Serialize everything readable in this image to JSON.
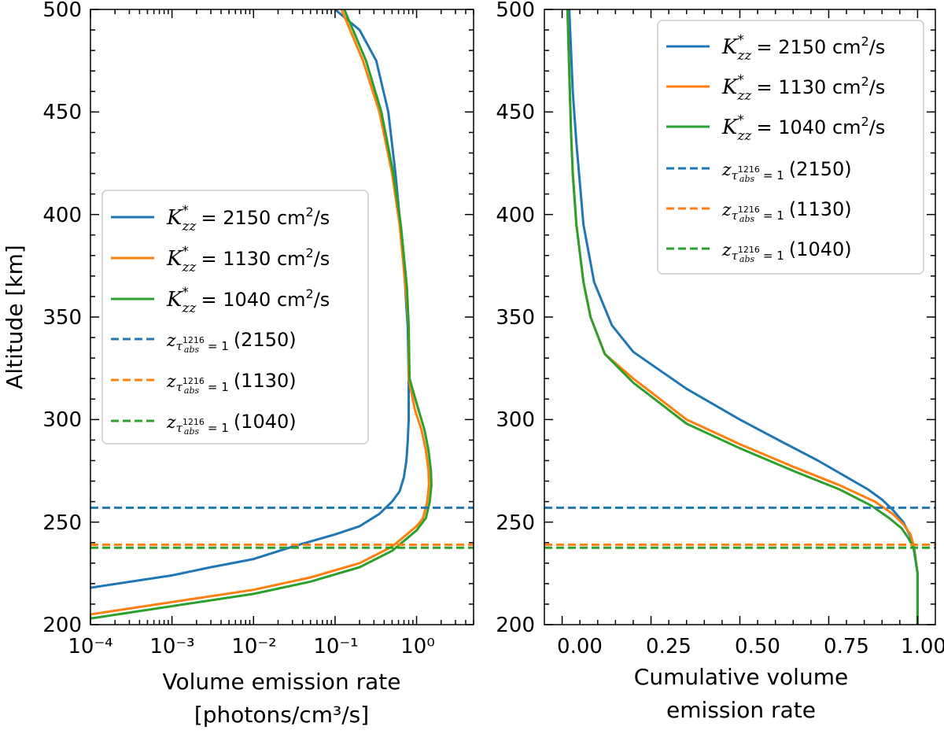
{
  "chart_data": [
    {
      "type": "line",
      "xscale": "log",
      "xlim": [
        0.0001,
        5
      ],
      "ylim": [
        200,
        500
      ],
      "ylabel": "Altitude [km]",
      "xlabel_line1": "Volume emission rate",
      "xlabel_line2": "[photons/cm³/s]",
      "xtick_labels": [
        "10⁻⁴",
        "10⁻³",
        "10⁻²",
        "10⁻¹",
        "10⁰"
      ],
      "ytick_labels": [
        "200",
        "250",
        "300",
        "350",
        "400",
        "450",
        "500"
      ],
      "legend_position": "center-left",
      "series": [
        {
          "name": "K*zz = 2150 cm²/s",
          "value": "2150",
          "color": "#1f77b4",
          "style": "solid",
          "x": [
            0.0001,
            0.001,
            0.003,
            0.01,
            0.03,
            0.1,
            0.2,
            0.35,
            0.5,
            0.62,
            0.7,
            0.75,
            0.78,
            0.8,
            0.8,
            0.78,
            0.75,
            0.72,
            0.65,
            0.55,
            0.45,
            0.32,
            0.2,
            0.1
          ],
          "y": [
            218,
            224,
            228,
            232,
            238,
            244,
            248,
            254,
            260,
            265,
            272,
            280,
            290,
            300,
            320,
            345,
            355,
            367,
            390,
            420,
            450,
            475,
            490,
            500
          ]
        },
        {
          "name": "K*zz = 1130 cm²/s",
          "value": "1130",
          "color": "#ff7f0e",
          "style": "solid",
          "x": [
            0.0001,
            0.001,
            0.01,
            0.05,
            0.2,
            0.5,
            1.0,
            1.2,
            1.35,
            1.42,
            1.4,
            1.3,
            1.15,
            0.95,
            0.8,
            0.8,
            0.75,
            0.62,
            0.5,
            0.35,
            0.22,
            0.12
          ],
          "y": [
            205,
            211,
            217,
            223,
            230,
            238,
            248,
            252,
            260,
            268,
            275,
            285,
            295,
            305,
            320,
            345,
            360,
            395,
            420,
            450,
            475,
            500
          ]
        },
        {
          "name": "K*zz = 1040 cm²/s",
          "value": "1040",
          "color": "#2ca02c",
          "style": "solid",
          "x": [
            0.0001,
            0.001,
            0.01,
            0.05,
            0.2,
            0.5,
            1.0,
            1.3,
            1.45,
            1.52,
            1.5,
            1.4,
            1.25,
            1.05,
            0.82,
            0.8,
            0.76,
            0.64,
            0.52,
            0.37,
            0.24,
            0.13
          ],
          "y": [
            203,
            209,
            215,
            221,
            228,
            236,
            246,
            252,
            260,
            268,
            275,
            285,
            295,
            305,
            320,
            346,
            365,
            395,
            420,
            450,
            475,
            500
          ]
        },
        {
          "name": "z(τ 1216 abs = 1) (2150)",
          "value": "(2150)",
          "color": "#1f77b4",
          "style": "dashed",
          "y": 257
        },
        {
          "name": "z(τ 1216 abs = 1) (1130)",
          "value": "(1130)",
          "color": "#ff7f0e",
          "style": "dashed",
          "y": 239
        },
        {
          "name": "z(τ 1216 abs = 1) (1040)",
          "value": "(1040)",
          "color": "#2ca02c",
          "style": "dashed",
          "y": 237.5
        }
      ]
    },
    {
      "type": "line",
      "xscale": "linear",
      "xlim": [
        -0.05,
        1.05
      ],
      "ylim": [
        200,
        500
      ],
      "xlabel_line1": "Cumulative volume",
      "xlabel_line2": "emission rate",
      "xtick_values": [
        0.0,
        0.25,
        0.5,
        0.75,
        1.0
      ],
      "xtick_labels": [
        "0.00",
        "0.25",
        "0.50",
        "0.75",
        "1.00"
      ],
      "ytick_labels": [
        "200",
        "250",
        "300",
        "350",
        "400",
        "450",
        "500"
      ],
      "legend_position": "top-right",
      "series": [
        {
          "name": "K*zz = 2150 cm²/s",
          "value": "2150",
          "color": "#1f77b4",
          "style": "solid",
          "x": [
            0.02,
            0.025,
            0.03,
            0.04,
            0.06,
            0.09,
            0.14,
            0.2,
            0.35,
            0.5,
            0.62,
            0.72,
            0.8,
            0.86,
            0.9,
            0.93,
            0.96,
            0.98,
            0.99,
            1.0,
            1.0
          ],
          "y": [
            500,
            480,
            460,
            435,
            395,
            367,
            346,
            333,
            315,
            300,
            289,
            280,
            272,
            266,
            261,
            256,
            250,
            243,
            236,
            225,
            200
          ]
        },
        {
          "name": "K*zz = 1130 cm²/s",
          "value": "1130",
          "color": "#ff7f0e",
          "style": "solid",
          "x": [
            0.015,
            0.02,
            0.025,
            0.03,
            0.04,
            0.06,
            0.08,
            0.12,
            0.2,
            0.35,
            0.5,
            0.65,
            0.78,
            0.88,
            0.93,
            0.96,
            0.98,
            0.99,
            1.0,
            1.0
          ],
          "y": [
            500,
            470,
            440,
            420,
            395,
            367,
            350,
            332,
            320,
            300,
            288,
            277,
            268,
            260,
            254,
            249,
            244,
            238,
            225,
            200
          ]
        },
        {
          "name": "K*zz = 1040 cm²/s",
          "value": "1040",
          "color": "#2ca02c",
          "style": "solid",
          "x": [
            0.015,
            0.02,
            0.025,
            0.03,
            0.04,
            0.06,
            0.08,
            0.12,
            0.2,
            0.35,
            0.5,
            0.65,
            0.78,
            0.87,
            0.92,
            0.955,
            0.975,
            0.99,
            1.0,
            1.0
          ],
          "y": [
            500,
            470,
            440,
            420,
            395,
            367,
            350,
            332,
            318,
            298,
            286,
            275,
            266,
            258,
            252,
            247,
            242,
            237,
            225,
            200
          ]
        },
        {
          "name": "z(τ 1216 abs = 1) (2150)",
          "value": "(2150)",
          "color": "#1f77b4",
          "style": "dashed",
          "y": 257
        },
        {
          "name": "z(τ 1216 abs = 1) (1130)",
          "value": "(1130)",
          "color": "#ff7f0e",
          "style": "dashed",
          "y": 239
        },
        {
          "name": "z(τ 1216 abs = 1) (1040)",
          "value": "(1040)",
          "color": "#2ca02c",
          "style": "dashed",
          "y": 237.5
        }
      ]
    }
  ]
}
